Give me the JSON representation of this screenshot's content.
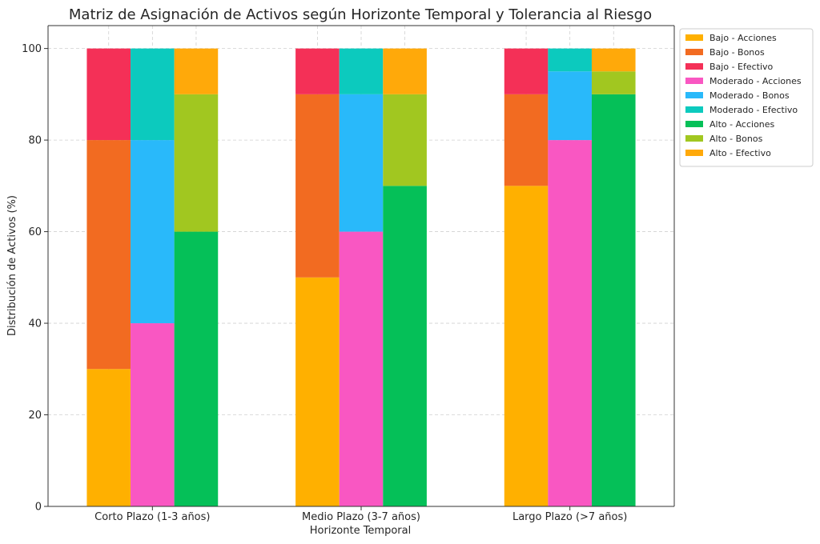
{
  "chart_data": {
    "type": "bar",
    "stacked": true,
    "title": "Matriz de Asignación de Activos según Horizonte Temporal y Tolerancia al Riesgo",
    "xlabel": "Horizonte Temporal",
    "ylabel": "Distribución de Activos (%)",
    "ylim": [
      0,
      105
    ],
    "yticks": [
      0,
      20,
      40,
      60,
      80,
      100
    ],
    "grid": true,
    "legend_position": "right",
    "categories": [
      "Corto Plazo (1-3 años)",
      "Medio Plazo (3-7 años)",
      "Largo Plazo (>7 años)"
    ],
    "groups": [
      "Bajo",
      "Moderado",
      "Alto"
    ],
    "assets": [
      "Acciones",
      "Bonos",
      "Efectivo"
    ],
    "series": [
      {
        "name": "Bajo - Acciones",
        "group": "Bajo",
        "color": "#FFB000",
        "values": [
          30,
          50,
          70
        ]
      },
      {
        "name": "Bajo - Bonos",
        "group": "Bajo",
        "color": "#F26B21",
        "values": [
          50,
          40,
          20
        ]
      },
      {
        "name": "Bajo - Efectivo",
        "group": "Bajo",
        "color": "#F43057",
        "values": [
          20,
          10,
          10
        ]
      },
      {
        "name": "Moderado - Acciones",
        "group": "Moderado",
        "color": "#F957C2",
        "values": [
          40,
          60,
          80
        ]
      },
      {
        "name": "Moderado - Bonos",
        "group": "Moderado",
        "color": "#29B9FA",
        "values": [
          40,
          30,
          15
        ]
      },
      {
        "name": "Moderado - Efectivo",
        "group": "Moderado",
        "color": "#0CCABE",
        "values": [
          20,
          10,
          5
        ]
      },
      {
        "name": "Alto - Acciones",
        "group": "Alto",
        "color": "#05C058",
        "values": [
          60,
          70,
          90
        ]
      },
      {
        "name": "Alto - Bonos",
        "group": "Alto",
        "color": "#A1C720",
        "values": [
          30,
          20,
          5
        ]
      },
      {
        "name": "Alto - Efectivo",
        "group": "Alto",
        "color": "#FFA90A",
        "values": [
          10,
          10,
          5
        ]
      }
    ]
  }
}
